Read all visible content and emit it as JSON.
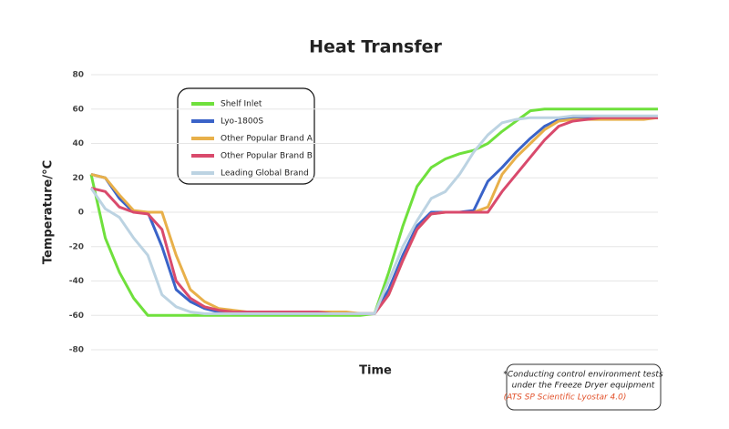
{
  "chart_data": {
    "type": "line",
    "title": "Heat Transfer",
    "x_label": "Time",
    "y_label": "Temperature/°C",
    "categories": [
      null,
      null,
      null,
      null,
      null,
      null,
      null,
      null,
      null,
      null,
      null,
      null,
      null,
      null,
      null,
      null,
      null,
      null,
      null,
      null,
      null,
      null,
      null,
      null,
      null,
      null,
      null,
      null,
      null,
      null,
      null,
      null,
      null,
      null,
      null,
      null,
      null,
      null,
      null,
      null,
      null
    ],
    "ylim": [
      -80,
      80
    ],
    "yticks": [
      -80,
      -60,
      -40,
      -20,
      0,
      20,
      40,
      60,
      80
    ],
    "grid": true,
    "series": [
      {
        "name": "Shelf Inlet",
        "color": "#6fe03c",
        "values": [
          22,
          -15,
          -35,
          -50,
          -60,
          -60,
          -60,
          -60,
          -60,
          -60,
          -60,
          -60,
          -60,
          -60,
          -60,
          -60,
          -60,
          -60,
          -60,
          -60,
          -59,
          -35,
          -8,
          15,
          26,
          31,
          34,
          36,
          40,
          47,
          53,
          59,
          60,
          60,
          60,
          60,
          60,
          60,
          60,
          60,
          60
        ]
      },
      {
        "name": "Lyo-1800S",
        "color": "#3a63c8",
        "values": [
          22,
          20,
          8,
          0,
          0,
          -20,
          -45,
          -52,
          -56,
          -58,
          -59,
          -59,
          -59,
          -59,
          -59,
          -59,
          -59,
          -59,
          -59,
          -59,
          -59,
          -45,
          -25,
          -8,
          0,
          0,
          0,
          1,
          18,
          26,
          35,
          43,
          50,
          54,
          55,
          55,
          55,
          55,
          55,
          55,
          55
        ]
      },
      {
        "name": "Other Popular Brand A",
        "color": "#e8b04a",
        "values": [
          22,
          20,
          10,
          1,
          0,
          0,
          -25,
          -45,
          -52,
          -56,
          -57,
          -58,
          -58,
          -58,
          -58,
          -58,
          -58,
          -58,
          -58,
          -59,
          -59,
          -48,
          -28,
          -10,
          -1,
          0,
          0,
          0,
          3,
          22,
          32,
          40,
          48,
          53,
          54,
          54,
          54,
          54,
          54,
          54,
          55
        ]
      },
      {
        "name": "Other Popular Brand B",
        "color": "#d94a6c",
        "values": [
          14,
          12,
          3,
          0,
          -1,
          -10,
          -40,
          -50,
          -55,
          -57,
          -58,
          -58,
          -58,
          -58,
          -58,
          -58,
          -58,
          -59,
          -59,
          -59,
          -59,
          -48,
          -28,
          -10,
          -1,
          0,
          0,
          0,
          0,
          12,
          22,
          32,
          42,
          50,
          53,
          54,
          55,
          55,
          55,
          55,
          55
        ]
      },
      {
        "name": "Leading Global Brand",
        "color": "#bcd3e2",
        "values": [
          14,
          2,
          -3,
          -15,
          -25,
          -48,
          -55,
          -58,
          -59,
          -59,
          -59,
          -59,
          -59,
          -59,
          -59,
          -59,
          -59,
          -59,
          -59,
          -59,
          -59,
          -40,
          -20,
          -5,
          8,
          12,
          22,
          35,
          45,
          52,
          54,
          55,
          55,
          55,
          56,
          56,
          56,
          56,
          56,
          56,
          56
        ]
      }
    ],
    "legend": "upper left",
    "note": [
      "*Conducting control environment tests",
      "under the Freeze Dryer equipment",
      "(ATS SP Scientific Lyostar 4.0)"
    ]
  }
}
